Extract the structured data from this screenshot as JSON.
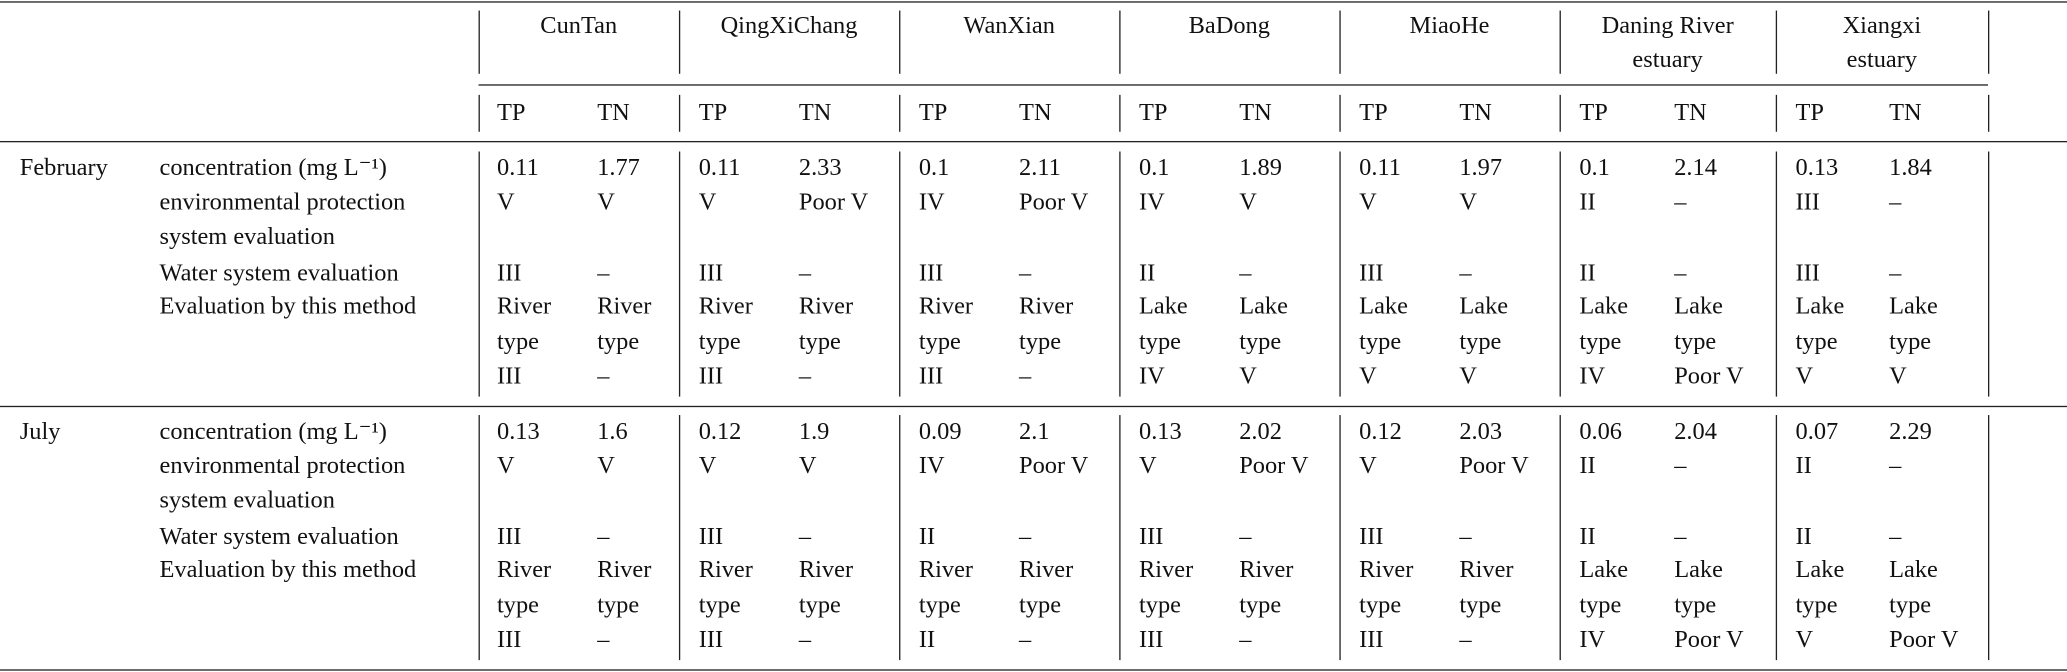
{
  "header": {
    "sites": [
      [
        "CunTan"
      ],
      [
        "QingXiChang"
      ],
      [
        "WanXian"
      ],
      [
        "BaDong"
      ],
      [
        "MiaoHe"
      ],
      [
        "Daning River",
        "estuary"
      ],
      [
        "Xiangxi",
        "estuary"
      ]
    ],
    "params": [
      "TP",
      "TN"
    ]
  },
  "row_labels": [
    "concentration (mg L⁻¹)",
    "environmental protection system evaluation",
    "Water system evaluation",
    "Evaluation by this method"
  ],
  "months": [
    {
      "name": "February",
      "concentration": [
        0.11,
        1.77,
        0.11,
        2.33,
        0.1,
        2.11,
        0.1,
        1.89,
        0.11,
        1.97,
        0.1,
        2.14,
        0.13,
        1.84
      ],
      "environmental": [
        "V",
        "V",
        "V",
        "Poor V",
        "IV",
        "Poor V",
        "IV",
        "V",
        "V",
        "V",
        "II",
        "–",
        "III",
        "–"
      ],
      "water": [
        "III",
        "–",
        "III",
        "–",
        "III",
        "–",
        "II",
        "–",
        "III",
        "–",
        "II",
        "–",
        "III",
        "–"
      ],
      "method": [
        [
          "River",
          "type",
          "III"
        ],
        [
          "River",
          "type",
          "–"
        ],
        [
          "River",
          "type",
          "III"
        ],
        [
          "River",
          "type",
          "–"
        ],
        [
          "River",
          "type",
          "III"
        ],
        [
          "River",
          "type",
          "–"
        ],
        [
          "Lake",
          "type",
          "IV"
        ],
        [
          "Lake",
          "type",
          "V"
        ],
        [
          "Lake",
          "type",
          "V"
        ],
        [
          "Lake",
          "type",
          "V"
        ],
        [
          "Lake",
          "type",
          "IV"
        ],
        [
          "Lake",
          "type",
          "Poor V"
        ],
        [
          "Lake",
          "type",
          "V"
        ],
        [
          "Lake",
          "type",
          "V"
        ]
      ]
    },
    {
      "name": "July",
      "concentration": [
        0.13,
        1.6,
        0.12,
        1.9,
        0.09,
        2.1,
        0.13,
        2.02,
        0.12,
        2.03,
        0.06,
        2.04,
        0.07,
        2.29
      ],
      "environmental": [
        "V",
        "V",
        "V",
        "V",
        "IV",
        "Poor V",
        "V",
        "Poor V",
        "V",
        "Poor V",
        "II",
        "–",
        "II",
        "–"
      ],
      "water": [
        "III",
        "–",
        "III",
        "–",
        "II",
        "–",
        "III",
        "–",
        "III",
        "–",
        "II",
        "–",
        "II",
        "–"
      ],
      "method": [
        [
          "River",
          "type",
          "III"
        ],
        [
          "River",
          "type",
          "–"
        ],
        [
          "River",
          "type",
          "III"
        ],
        [
          "River",
          "type",
          "–"
        ],
        [
          "River",
          "type",
          "II"
        ],
        [
          "River",
          "type",
          "–"
        ],
        [
          "River",
          "type",
          "III"
        ],
        [
          "River",
          "type",
          "–"
        ],
        [
          "River",
          "type",
          "III"
        ],
        [
          "River",
          "type",
          "–"
        ],
        [
          "Lake",
          "type",
          "IV"
        ],
        [
          "Lake",
          "type",
          "Poor V"
        ],
        [
          "Lake",
          "type",
          "V"
        ],
        [
          "Lake",
          "type",
          "Poor V"
        ]
      ]
    }
  ]
}
